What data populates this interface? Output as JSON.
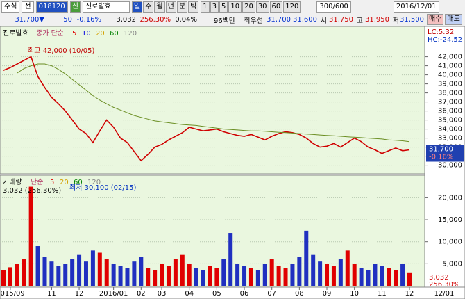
{
  "toolbar": {
    "market": "주식",
    "mode": "전",
    "code": "018120",
    "new": "신",
    "name": "진로발효",
    "periods": [
      "일",
      "주",
      "월",
      "년",
      "분",
      "틱"
    ],
    "intervals": [
      "1",
      "3",
      "5",
      "10",
      "20",
      "30",
      "60",
      "120"
    ],
    "count": "300/600",
    "date": "2016/12/01"
  },
  "quote": {
    "price": "31,700▼",
    "change": "50",
    "change_pct": "-0.16%",
    "volume": "3,032",
    "volume_ratio": "256.30%",
    "turnover": "0.04%",
    "amount": "96백만",
    "best_label": "최우선",
    "ask": "31,700",
    "bid": "31,600",
    "open_label": "시",
    "open": "31,750",
    "high_label": "고",
    "high": "31,950",
    "low_label": "저",
    "low": "31,500",
    "buy": "매수",
    "sell": "매도"
  },
  "chart_data": [
    {
      "type": "line",
      "title": "진로발효",
      "ma_label": "종가 단순",
      "ma_periods": [
        {
          "label": "5",
          "color": "#e00000"
        },
        {
          "label": "10",
          "color": "#0000e0"
        },
        {
          "label": "20",
          "color": "#d4a000"
        },
        {
          "label": "60",
          "color": "#008000"
        },
        {
          "label": "120",
          "color": "#888888"
        }
      ],
      "side_labels": [
        "LC:5.32",
        "HC:-24.52"
      ],
      "annotations": [
        "최고 42,000 (10/05)",
        "최저 30,100 (02/15)"
      ],
      "last_labels": [
        "31,700",
        "-0.16%"
      ],
      "ylim": [
        29200,
        45200
      ],
      "yticks": [
        {
          "value": 30000,
          "label": "30,000"
        },
        {
          "value": 31000,
          "label": "31,000"
        },
        {
          "value": 32000,
          "label": "32,000"
        },
        {
          "value": 33000,
          "label": "33,000"
        },
        {
          "value": 34000,
          "label": "34,000"
        },
        {
          "value": 35000,
          "label": "35,000"
        },
        {
          "value": 36000,
          "label": "36,000"
        },
        {
          "value": 37000,
          "label": "37,000"
        },
        {
          "value": 38000,
          "label": "38,000"
        },
        {
          "value": 39000,
          "label": "39,000"
        },
        {
          "value": 40000,
          "label": "40,000"
        },
        {
          "value": 41000,
          "label": "41,000"
        },
        {
          "value": 42000,
          "label": "42,000"
        }
      ],
      "grid": true,
      "series": [
        {
          "color": "#d00000",
          "values": [
            40500,
            40800,
            41200,
            41600,
            42000,
            39800,
            38600,
            37500,
            36800,
            36000,
            35000,
            34000,
            33500,
            32500,
            33800,
            35000,
            34200,
            33000,
            32500,
            31500,
            30500,
            31200,
            32000,
            32300,
            32800,
            33200,
            33600,
            34200,
            34000,
            33800,
            33900,
            34000,
            33700,
            33500,
            33300,
            33200,
            33400,
            33100,
            32800,
            33200,
            33500,
            33700,
            33600,
            33400,
            33000,
            32400,
            32000,
            32100,
            32400,
            32000,
            32500,
            33000,
            32600,
            32000,
            31700,
            31300,
            31600,
            31900,
            31600,
            31700
          ]
        },
        {
          "color": "#6b8e23",
          "values": [
            null,
            null,
            40200,
            40700,
            41000,
            41200,
            41200,
            41000,
            40600,
            40100,
            39500,
            38900,
            38300,
            37700,
            37200,
            36800,
            36400,
            36100,
            35800,
            35500,
            35300,
            35100,
            34900,
            34800,
            34700,
            34600,
            34500,
            34450,
            34400,
            34300,
            34200,
            34100,
            34000,
            33950,
            33900,
            33850,
            33800,
            33800,
            33750,
            33700,
            33650,
            33600,
            33550,
            33500,
            33450,
            33400,
            33350,
            33300,
            33250,
            33200,
            33150,
            33100,
            33050,
            33000,
            32950,
            32900,
            32800,
            32750,
            32700,
            32600
          ]
        }
      ]
    },
    {
      "type": "bar",
      "title": "거래량",
      "ma_label": "단순",
      "ma_periods": [
        {
          "label": "5",
          "color": "#e00000"
        },
        {
          "label": "20",
          "color": "#d4a000"
        },
        {
          "label": "60",
          "color": "#008000"
        },
        {
          "label": "120",
          "color": "#888888"
        }
      ],
      "last_label": "3,032 (256.30%)",
      "last_labels": [
        "3,032",
        "256.30%"
      ],
      "ylim": [
        0,
        24800
      ],
      "yticks": [
        {
          "value": 5000,
          "label": "5,000"
        },
        {
          "value": 10000,
          "label": "10,000"
        },
        {
          "value": 15000,
          "label": "15,000"
        },
        {
          "value": 20000,
          "label": "20,000"
        }
      ],
      "grid": true,
      "categories": [
        null,
        "2015/09",
        null,
        null,
        null,
        null,
        null,
        "11",
        null,
        null,
        null,
        "12",
        null,
        null,
        null,
        null,
        "2016/01",
        null,
        null,
        null,
        "02",
        null,
        null,
        "03",
        null,
        null,
        null,
        "04",
        null,
        null,
        null,
        "05",
        null,
        null,
        null,
        "06",
        null,
        null,
        null,
        "07",
        null,
        null,
        null,
        "08",
        null,
        null,
        null,
        "09",
        null,
        null,
        null,
        "10",
        null,
        null,
        null,
        "11",
        null,
        null,
        null,
        "12"
      ],
      "x_end_label": "12/01",
      "values": [
        3500,
        4200,
        5000,
        6000,
        22500,
        9000,
        6500,
        5500,
        4500,
        5000,
        6000,
        7000,
        5500,
        8000,
        7500,
        6000,
        5000,
        4500,
        4000,
        5500,
        6500,
        4000,
        3500,
        5000,
        4500,
        6000,
        7000,
        5000,
        4000,
        3500,
        4500,
        4000,
        6000,
        12000,
        5000,
        4500,
        4000,
        3500,
        5000,
        6000,
        4500,
        4000,
        5000,
        6500,
        12500,
        7000,
        5500,
        5000,
        4500,
        6000,
        8000,
        5000,
        4000,
        3500,
        5000,
        4500,
        4000,
        3500,
        5000,
        3032
      ]
    }
  ]
}
